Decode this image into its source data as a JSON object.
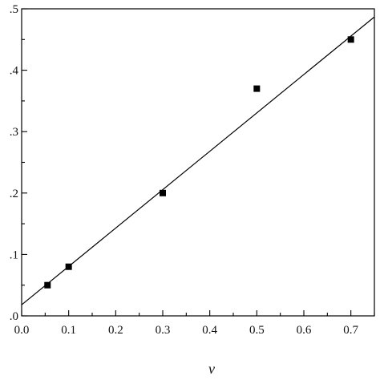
{
  "chart_data": {
    "type": "scatter",
    "title": "",
    "xlabel": "ν",
    "ylabel": "",
    "xlim": [
      0.0,
      0.75
    ],
    "ylim": [
      0.0,
      0.5
    ],
    "x_ticks": [
      "0.0",
      "0.1",
      "0.2",
      "0.3",
      "0.4",
      "0.5",
      "0.6",
      "0.7"
    ],
    "y_ticks": [
      ".0",
      ".1",
      ".2",
      ".3",
      ".4",
      ".5"
    ],
    "grid": false,
    "series": [
      {
        "marker": "square",
        "color": "#000000",
        "points": [
          {
            "x": 0.055,
            "y": 0.05
          },
          {
            "x": 0.1,
            "y": 0.08
          },
          {
            "x": 0.3,
            "y": 0.2
          },
          {
            "x": 0.5,
            "y": 0.37
          },
          {
            "x": 0.7,
            "y": 0.45
          }
        ]
      }
    ],
    "fit_line": {
      "type": "linear",
      "color": "#000000",
      "intercept": 0.018,
      "slope": 0.625
    }
  }
}
